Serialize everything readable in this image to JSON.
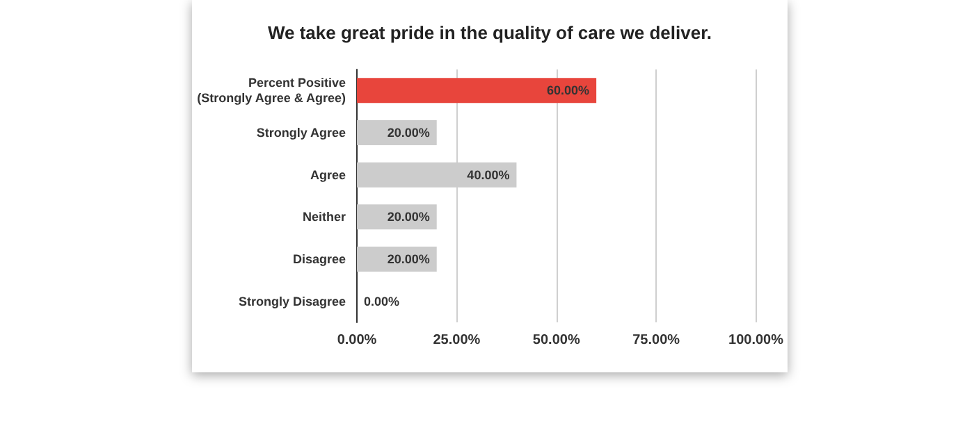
{
  "chart_data": {
    "type": "bar",
    "orientation": "horizontal",
    "title": "We take great pride in the quality of care we deliver.",
    "categories": [
      "Percent Positive\n(Strongly Agree & Agree)",
      "Strongly Agree",
      "Agree",
      "Neither",
      "Disagree",
      "Strongly Disagree"
    ],
    "values": [
      60,
      20,
      40,
      20,
      20,
      0
    ],
    "colors": [
      "#e8453c",
      "#cccccc",
      "#cccccc",
      "#cccccc",
      "#cccccc",
      "#cccccc"
    ],
    "value_labels": [
      "60.00%",
      "20.00%",
      "40.00%",
      "20.00%",
      "20.00%",
      "0.00%"
    ],
    "xlim": [
      0,
      100
    ],
    "xticks": [
      {
        "value": 0,
        "label": "0.00%"
      },
      {
        "value": 25,
        "label": "25.00%"
      },
      {
        "value": 50,
        "label": "50.00%"
      },
      {
        "value": 75,
        "label": "75.00%"
      },
      {
        "value": 100,
        "label": "100.00%"
      }
    ],
    "grid": "x"
  }
}
